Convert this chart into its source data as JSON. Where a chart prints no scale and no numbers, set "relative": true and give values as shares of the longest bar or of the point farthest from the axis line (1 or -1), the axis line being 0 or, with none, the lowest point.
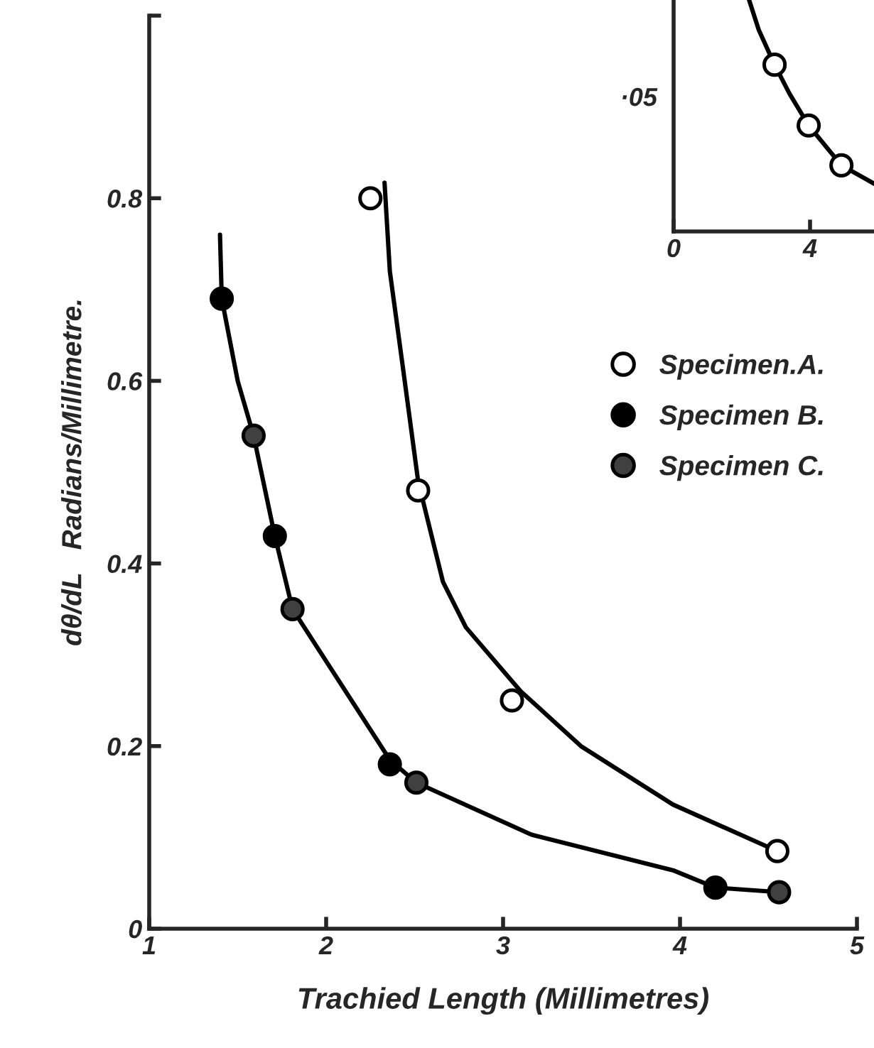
{
  "chart_data": [
    {
      "type": "scatter",
      "xlabel": "Trachied Length (Millimetres)",
      "ylabel": "dθ/dL   Radians/Millimetre.",
      "xlim": [
        1,
        5
      ],
      "ylim": [
        0,
        1
      ],
      "xticks": [
        1,
        2,
        3,
        4,
        5
      ],
      "yticks": [
        0,
        0.2,
        0.4,
        0.6,
        0.8,
        {
          "value": 1,
          "label": null
        }
      ],
      "grid": false,
      "legend": "right",
      "series": [
        {
          "name": "Specimen.A.",
          "marker": "circle",
          "color": "#ffffff",
          "x": [
            2.25,
            2.52,
            3.05,
            4.55
          ],
          "values": [
            0.8,
            0.48,
            0.25,
            0.085
          ]
        },
        {
          "name": "Specimen B.",
          "marker": "circle",
          "color": "#000000",
          "x": [
            1.41,
            1.71,
            2.36,
            4.2
          ],
          "values": [
            0.69,
            0.43,
            0.18,
            0.045
          ]
        },
        {
          "name": "Specimen C.",
          "marker": "circle",
          "color": "#404040",
          "x": [
            1.59,
            1.81,
            2.51,
            4.56
          ],
          "values": [
            0.54,
            0.35,
            0.16,
            0.04
          ]
        },
        {
          "type": "line",
          "color": "#000000",
          "x": [
            2.33,
            2.36,
            2.43,
            2.52,
            2.66,
            2.79,
            3.1,
            3.44,
            3.96,
            4.55
          ],
          "values": [
            0.817,
            0.72,
            0.62,
            0.49,
            0.38,
            0.33,
            0.26,
            0.2,
            0.136,
            0.085
          ]
        },
        {
          "type": "line",
          "color": "#000000",
          "x": [
            1.4,
            1.41,
            1.5,
            1.59,
            1.71,
            1.81,
            2.06,
            2.36,
            2.51,
            3.16,
            3.96,
            4.2,
            4.56
          ],
          "values": [
            0.76,
            0.69,
            0.6,
            0.54,
            0.43,
            0.35,
            0.275,
            0.185,
            0.16,
            0.103,
            0.064,
            0.045,
            0.04
          ]
        }
      ]
    },
    {
      "type": "scatter",
      "relative": true,
      "xlim": [
        0,
        6
      ],
      "xticks": [
        0,
        4
      ],
      "annotations": [
        "·05"
      ],
      "grid": false,
      "series": [
        {
          "marker": "circle",
          "color": "#ffffff",
          "x": [
            2.96,
            3.96,
            4.92
          ],
          "values": [
            0.716,
            0.455,
            0.284
          ]
        },
        {
          "type": "line",
          "color": "#000000",
          "x": [
            2.2,
            2.5,
            2.96,
            3.4,
            3.96,
            4.92,
            5.88
          ],
          "values": [
            1,
            0.864,
            0.716,
            0.591,
            0.455,
            0.284,
            0.205
          ]
        }
      ]
    }
  ]
}
